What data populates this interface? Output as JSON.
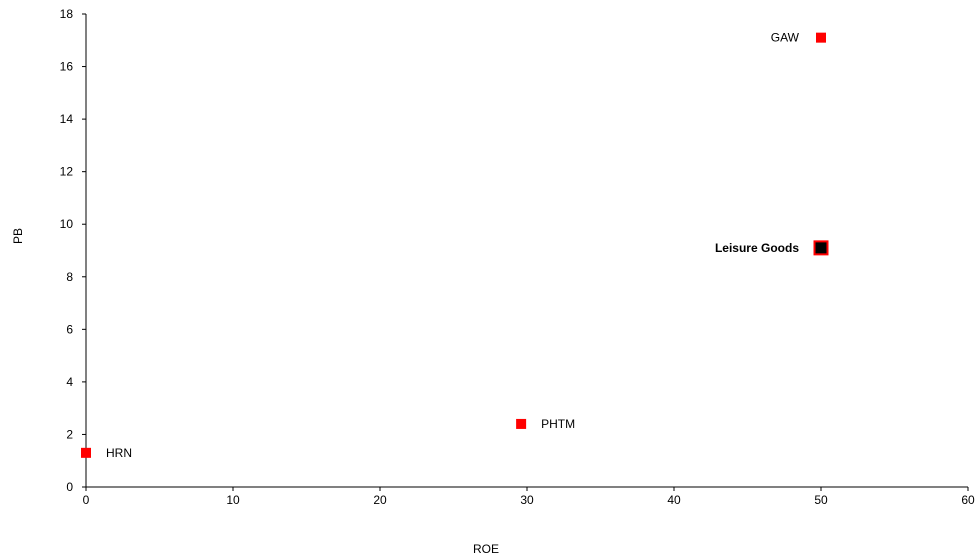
{
  "chart_data": {
    "type": "scatter",
    "title": "",
    "xlabel": "ROE",
    "ylabel": "PB",
    "xlim": [
      0,
      60
    ],
    "ylim": [
      0,
      18
    ],
    "xticks": [
      0,
      10,
      20,
      30,
      40,
      50,
      60
    ],
    "yticks": [
      0,
      2,
      4,
      6,
      8,
      10,
      12,
      14,
      16,
      18
    ],
    "grid": false,
    "points": [
      {
        "label": "GAW",
        "x": 50.0,
        "y": 17.1,
        "color": "#ff0000",
        "highlight": false,
        "label_side": "left"
      },
      {
        "label": "Leisure Goods",
        "x": 50.0,
        "y": 9.1,
        "color": "#000000",
        "border": "#ff0000",
        "highlight": true,
        "label_side": "left"
      },
      {
        "label": "PHTM",
        "x": 29.6,
        "y": 2.4,
        "color": "#ff0000",
        "highlight": false,
        "label_side": "right"
      },
      {
        "label": "HRN",
        "x": 0.0,
        "y": 1.3,
        "color": "#ff0000",
        "highlight": false,
        "label_side": "right"
      }
    ]
  }
}
